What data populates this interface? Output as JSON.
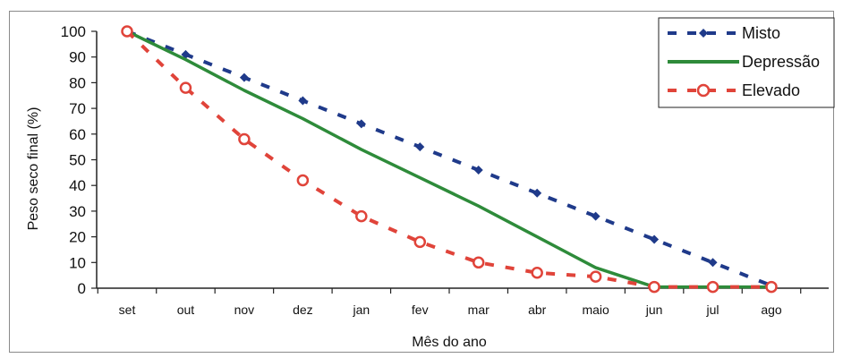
{
  "chart_data": {
    "type": "line",
    "title": "",
    "xlabel": "Mês do ano",
    "ylabel": "Peso seco final (%)",
    "categories": [
      "set",
      "out",
      "nov",
      "dez",
      "jan",
      "fev",
      "mar",
      "abr",
      "maio",
      "jun",
      "jul",
      "ago"
    ],
    "ylim": [
      0,
      100
    ],
    "yticks": [
      0,
      10,
      20,
      30,
      40,
      50,
      60,
      70,
      80,
      90,
      100
    ],
    "grid": false,
    "legend_position": "top-right",
    "series": [
      {
        "name": "Misto",
        "values": [
          100,
          91,
          82,
          73,
          64,
          55,
          46,
          37,
          28,
          19,
          10,
          1
        ],
        "color": "#1f3a8a",
        "style": "dashed",
        "marker": "diamond"
      },
      {
        "name": "Depressão",
        "values": [
          100,
          89,
          77,
          66,
          54,
          43,
          32,
          20,
          8,
          0.5,
          0.5,
          0.5
        ],
        "color": "#2e8b3a",
        "style": "solid",
        "marker": "none"
      },
      {
        "name": "Elevado",
        "values": [
          100,
          78,
          58,
          42,
          28,
          18,
          10,
          6,
          4.5,
          0.5,
          0.5,
          0.5
        ],
        "color": "#e0443a",
        "style": "dashed",
        "marker": "circle"
      }
    ]
  }
}
